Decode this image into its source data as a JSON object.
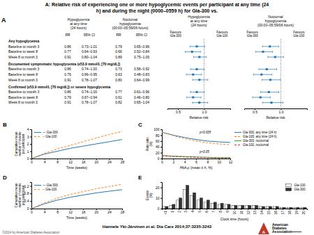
{
  "title": "A: Relative risk of experiencing one or more hypoglycemic events per participant at any time (24\nh) and during the night (0000–0559 h) for Gla-300 vs.",
  "annotations": [
    "Hannele Yki-Järvinen et al. Dia Care 2014;37:3235-3243",
    "©2014 by American Diabetes Association"
  ],
  "logo": {
    "texts": [
      "A",
      "American",
      "Diabetes",
      "Association⸻"
    ],
    "color": "#c0392b"
  },
  "chart_data": [
    {
      "type": "table",
      "title": "A",
      "column_groups": [
        "Hypoglycemia\nat any time\n(24 hours)",
        "Nocturnal\nhypoglycemia\n(00:00–05:59/06 hours)"
      ],
      "columns": [
        "RR",
        "95% CI",
        "RR",
        "95% CI"
      ],
      "sections": [
        {
          "header": "Any hypoglycemia",
          "rows": [
            [
              "Baseline to month 3",
              "0.86",
              "0.73–1.01",
              "0.79",
              "0.65–0.96"
            ],
            [
              "Baseline to week 8",
              "0.77",
              "0.64–0.93",
              "0.66",
              "0.52–0.84"
            ],
            [
              "Week 8 to month 3",
              "0.91",
              "0.80–1.04",
              "0.89",
              "0.75–1.05"
            ]
          ]
        },
        {
          "header": "Documented symptomatic hypoglycemia (≤53.9 mmol/L [70 mg/dL])",
          "rows": [
            [
              "Baseline to month 3",
              "0.86",
              "0.74–1.00",
              "0.73",
              "0.58–0.92"
            ],
            [
              "Baseline to week 8",
              "0.79",
              "0.66–0.95",
              "0.63",
              "0.48–0.83"
            ],
            [
              "Week 8 to month 3",
              "0.91",
              "0.78–1.07",
              "0.80",
              "0.64–0.99"
            ]
          ]
        },
        {
          "header": "Confirmed (≤53.9 mmol/L [70 mg/dL]) or severe hypoglycemia",
          "rows": [
            [
              "Baseline to month 3",
              "0.86",
              "0.74–1.00",
              "0.77",
              "0.61–0.96"
            ],
            [
              "Baseline to week 8",
              "0.79",
              "0.67–0.94",
              "0.61",
              "0.46–0.80"
            ],
            [
              "Week 8 to month 3",
              "0.91",
              "0.78–1.07",
              "0.82",
              "0.65–1.04"
            ]
          ]
        }
      ]
    },
    {
      "type": "forest",
      "title": "Hypoglycemia\nat any time\n(24 hours)",
      "annotations": [
        "Favours\nGla-300",
        "Favours\nGla-100"
      ],
      "xlabel": "Relative risk",
      "values": [
        0.86,
        0.77,
        0.91,
        0.86,
        0.79,
        0.91,
        0.86,
        0.79,
        0.91
      ],
      "ci_low": [
        0.73,
        0.64,
        0.8,
        0.74,
        0.66,
        0.78,
        0.74,
        0.67,
        0.78
      ],
      "ci_high": [
        1.01,
        0.93,
        1.04,
        1.0,
        0.95,
        1.07,
        1.0,
        0.94,
        1.07
      ],
      "ref_line": 1,
      "xlim": [
        0.3,
        1.5
      ],
      "xticks": [
        0.5,
        {
          "value": 1,
          "label": "1.0"
        }
      ],
      "tick_labels": "x"
    },
    {
      "type": "forest",
      "title": "Nocturnal\nhypoglycemia\n(00:00–05:59/06 hours)",
      "annotations": [
        "Favours\nGla-300",
        "Favours\nGla-100"
      ],
      "xlabel": "Relative risk",
      "values": [
        0.79,
        0.66,
        0.89,
        0.73,
        0.63,
        0.8,
        0.77,
        0.61,
        0.82
      ],
      "ci_low": [
        0.65,
        0.52,
        0.75,
        0.58,
        0.48,
        0.64,
        0.61,
        0.46,
        0.65
      ],
      "ci_high": [
        0.96,
        0.84,
        1.05,
        0.92,
        0.83,
        0.99,
        0.96,
        0.8,
        1.04
      ],
      "ref_line": 1,
      "xlim": [
        0.3,
        1.5
      ],
      "xticks": [
        0.5,
        {
          "value": 1,
          "label": "1.0"
        }
      ],
      "tick_labels": "x"
    },
    {
      "type": "line",
      "title": "B",
      "x": [
        0,
        4,
        8,
        12,
        16,
        20,
        24,
        28
      ],
      "series": [
        {
          "name": "— Gla-300",
          "line_style": "solid",
          "values": [
            0.0,
            0.6,
            1.0,
            1.4,
            1.7,
            2.0,
            2.3,
            2.6
          ]
        },
        {
          "name": "-- Gla-100",
          "line_style": "dashed",
          "values": [
            0.0,
            0.7,
            1.3,
            1.8,
            2.3,
            2.8,
            3.3,
            3.7
          ]
        }
      ],
      "xlabel": "Time (weeks)",
      "ylabel": "Cumulative mean\nnumber of events\nper participant",
      "xlim": [
        0,
        28
      ],
      "ylim": [
        0,
        4
      ],
      "xticks": [
        0,
        4,
        8,
        12,
        16,
        20,
        24,
        28
      ],
      "yticks": [
        0,
        1,
        2,
        3,
        4
      ],
      "legend": "upper left"
    },
    {
      "type": "line",
      "title": "C",
      "x": [
        0,
        2,
        4,
        6,
        8,
        10,
        12
      ],
      "series": [
        {
          "name": "Gla-300, any time (24 h)",
          "line_style": "solid",
          "values": [
            90,
            80,
            72,
            65,
            60,
            57,
            55
          ]
        },
        {
          "name": "Gla-100, any time (24 h)",
          "line_style": "dashed",
          "values": [
            90,
            78,
            68,
            60,
            54,
            50,
            47
          ]
        },
        {
          "name": "Gla-300, nocturnal",
          "line_style": "solid",
          "values": [
            10,
            8,
            7,
            5,
            4,
            3,
            3
          ]
        },
        {
          "name": "Gla-100, nocturnal",
          "line_style": "dashed",
          "values": [
            10,
            7,
            5,
            4,
            3,
            2,
            2
          ]
        }
      ],
      "annotations": [
        "p<0.005",
        "p<0.05"
      ],
      "xlabel": "HbA₁c (mean ± h, %)",
      "ylabel": "Rate ratio\n(%)",
      "xlim": [
        0,
        12
      ],
      "ylim": [
        0,
        100
      ],
      "xticks": [
        0,
        2,
        4,
        6,
        8,
        10,
        12
      ],
      "yticks": [
        0,
        20,
        40,
        60,
        80,
        100
      ],
      "legend": "right"
    },
    {
      "type": "line",
      "title": "D",
      "x": [
        0,
        4,
        8,
        12,
        16,
        20,
        24,
        28
      ],
      "series": [
        {
          "name": "— Gla-300",
          "line_style": "solid",
          "values": [
            0.0,
            0.25,
            0.45,
            0.6,
            0.72,
            0.83,
            0.92,
            1.0
          ]
        },
        {
          "name": "-- Gla-100",
          "line_style": "dashed",
          "values": [
            0.0,
            0.3,
            0.55,
            0.75,
            0.9,
            1.05,
            1.17,
            1.28
          ]
        }
      ],
      "xlabel": "Time (weeks)",
      "ylabel": "Cumulative mean\nnumber of events\nper participant",
      "xlim": [
        0,
        28
      ],
      "ylim": [
        0,
        1.4
      ],
      "xticks": [
        0,
        4,
        8,
        12,
        16,
        20,
        24,
        28
      ],
      "yticks": [
        0,
        0.4,
        0.8,
        1.2
      ],
      "legend": "upper left"
    },
    {
      "type": "bar",
      "title": "E",
      "categories": [
        "<1",
        "1",
        "2",
        "3",
        "4",
        "5",
        "6",
        "7",
        "8",
        "9",
        "10",
        "11",
        "12",
        "13",
        "14",
        "15",
        "16",
        "17",
        "18",
        "19",
        "20"
      ],
      "series": [
        {
          "name": "Gla-100",
          "color": "#ffffff",
          "values": [
            2,
            3,
            8,
            18,
            12,
            8,
            6,
            5,
            4,
            4,
            3,
            3,
            3,
            3,
            2,
            2,
            2,
            1,
            1,
            1,
            1
          ]
        },
        {
          "name": "Gla-300",
          "color": "#333333",
          "values": [
            2,
            4,
            10,
            22,
            15,
            10,
            8,
            6,
            5,
            4,
            3,
            3,
            3,
            3,
            2,
            2,
            2,
            1,
            1,
            1,
            1
          ]
        }
      ],
      "xlabel": "Clock time (hours)",
      "ylabel": "Events\n(%)",
      "ylim": [
        0,
        25
      ],
      "yticks": [
        0,
        10,
        20
      ],
      "legend": "upper right"
    }
  ]
}
